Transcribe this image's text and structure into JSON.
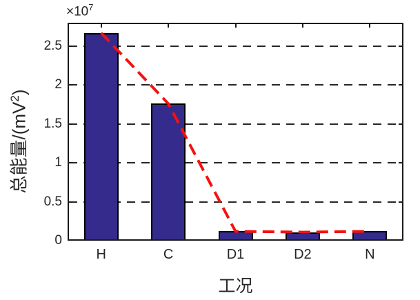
{
  "figure": {
    "background": "#ffffff",
    "exponent": {
      "prefix": "×10",
      "sup": "7"
    },
    "ylabel": {
      "prefix": "总能量/(mV",
      "sup": "2",
      "suffix": ")"
    },
    "xlabel": "工况"
  },
  "chart_data": {
    "type": "bar",
    "title": "",
    "xlabel": "工况",
    "ylabel": "总能量/(mV²)",
    "categories": [
      "H",
      "C",
      "D1",
      "D2",
      "N"
    ],
    "values": [
      26700000,
      17600000,
      1200000,
      1100000,
      1200000
    ],
    "series": [
      {
        "name": "total-energy-bars",
        "type": "bar",
        "values": [
          26700000,
          17600000,
          1200000,
          1100000,
          1200000
        ]
      },
      {
        "name": "trend-line",
        "type": "line",
        "line_style": "dashed",
        "values": [
          26700000,
          17600000,
          1200000,
          1100000,
          1200000
        ]
      }
    ],
    "ylim": [
      0,
      28000000
    ],
    "yticks": [
      0,
      5000000,
      10000000,
      15000000,
      20000000,
      25000000
    ],
    "ytick_labels": [
      "0",
      "0.5",
      "1",
      "1.5",
      "2",
      "2.5"
    ],
    "y_exponent": "×10⁷",
    "grid": {
      "axis": "y",
      "style": "dashed"
    },
    "legend": false
  },
  "colors": {
    "bar_fill": "#352b8c",
    "bar_edge": "#000000",
    "trend_line": "#f41111",
    "grid_line": "#262626",
    "axis": "#1a1a1a",
    "text": "#262626"
  }
}
